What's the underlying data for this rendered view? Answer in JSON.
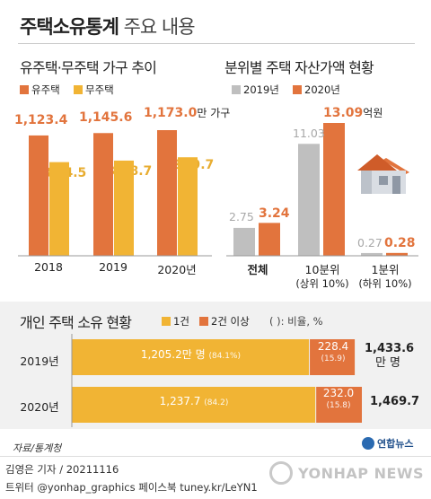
{
  "title": {
    "bold": "주택소유통계",
    "normal": "주요 내용"
  },
  "colors": {
    "orange": "#e2743d",
    "yellow": "#f1b434",
    "gray": "#bfbfbf",
    "panel": "#f1f1f1"
  },
  "chart_data": [
    {
      "type": "bar",
      "title": "유주택·무주택 가구 추이",
      "categories": [
        "2018",
        "2019",
        "2020년"
      ],
      "series": [
        {
          "name": "유주택",
          "values": [
            1123.4,
            1145.6,
            1173.0
          ],
          "labels": [
            "1,123.4",
            "1,145.6",
            "1,173.0"
          ]
        },
        {
          "name": "무주택",
          "values": [
            874.5,
            888.7,
            919.7
          ],
          "labels": [
            "874.5",
            "888.7",
            "919.7"
          ]
        }
      ],
      "unit": "만 가구"
    },
    {
      "type": "bar",
      "title": "분위별 주택 자산가액 현황",
      "categories": [
        "전체",
        "10분위",
        "1분위"
      ],
      "category_notes": [
        "",
        "(상위 10%)",
        "(하위 10%)"
      ],
      "series": [
        {
          "name": "2019년",
          "values": [
            2.75,
            11.03,
            0.27
          ],
          "labels": [
            "2.75",
            "11.03",
            "0.27"
          ]
        },
        {
          "name": "2020년",
          "values": [
            3.24,
            13.09,
            0.28
          ],
          "labels": [
            "3.24",
            "13.09",
            "0.28"
          ]
        }
      ],
      "unit": "억원"
    },
    {
      "type": "bar",
      "orientation": "horizontal",
      "stacked": true,
      "title": "개인 주택 소유 현황",
      "legend_note": "( ): 비율, %",
      "categories": [
        "2019년",
        "2020년"
      ],
      "series": [
        {
          "name": "1건",
          "values": [
            1205.2,
            1237.7
          ],
          "labels": [
            "1,205.2만 명",
            "1,237.7"
          ],
          "shares": [
            "(84.1%)",
            "(84.2)"
          ]
        },
        {
          "name": "2건 이상",
          "values": [
            228.4,
            232.0
          ],
          "labels": [
            "228.4",
            "232.0"
          ],
          "shares": [
            "(15.9)",
            "(15.8)"
          ]
        }
      ],
      "totals": [
        1433.6,
        1469.7
      ],
      "total_labels": [
        "1,433.6",
        "1,469.7"
      ],
      "total_unit": "만 명"
    }
  ],
  "source": "자료/통계청",
  "logo_text": "연합뉴스",
  "credit": "김영은 기자 / 20211116",
  "sns": "트위터 @yonhap_graphics  페이스북 tuney.kr/LeYN1",
  "watermark": "YONHAP NEWS"
}
